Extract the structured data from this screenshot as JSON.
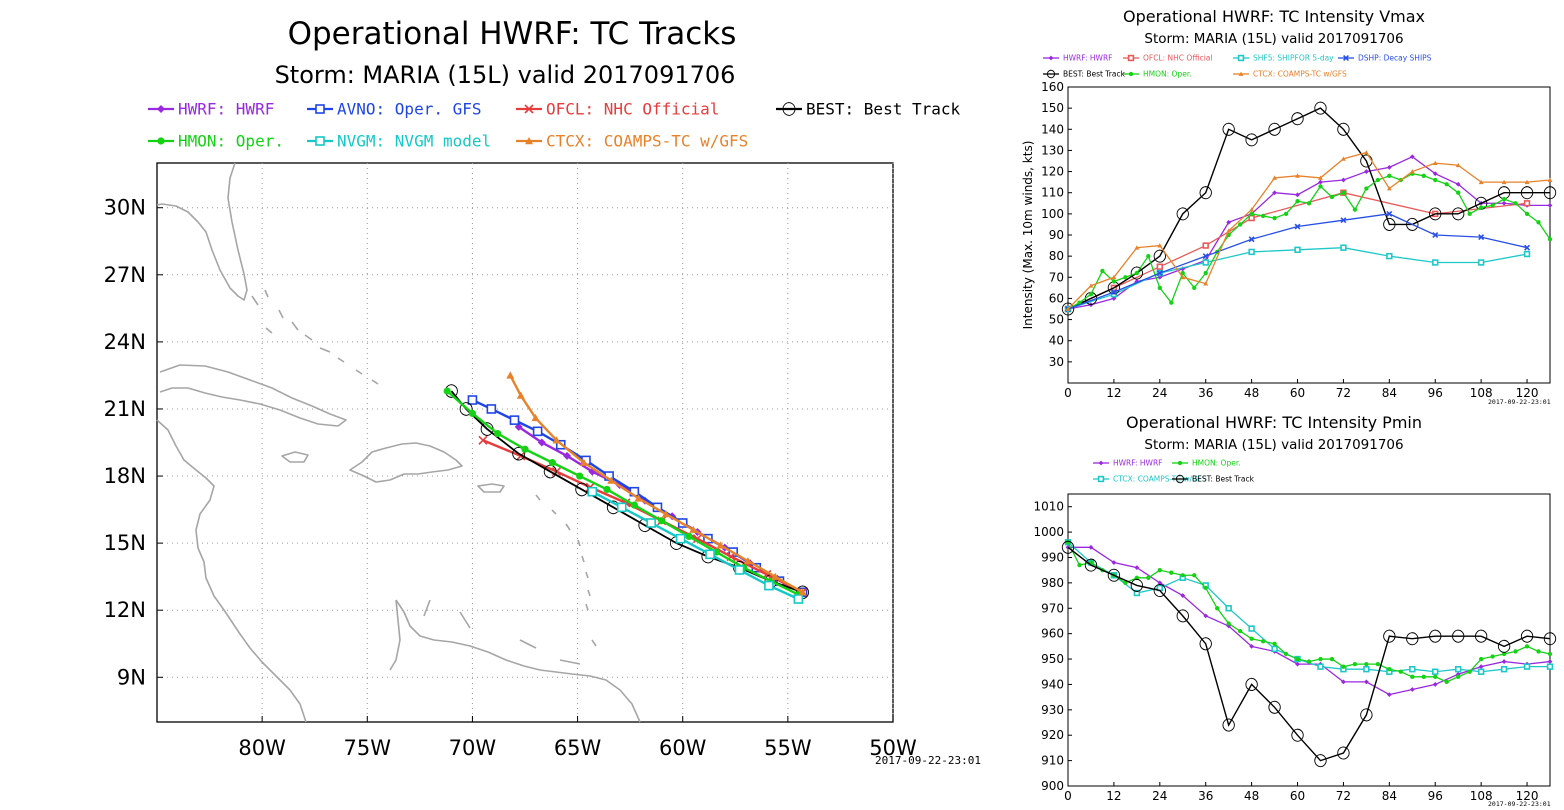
{
  "chart_data": [
    {
      "type": "scatter",
      "title": "Operational HWRF: TC Tracks",
      "subtitle": "Storm: MARIA (15L) valid 2017091706",
      "timestamp": "2017-09-22-23:01",
      "xlim": [
        -85,
        -50
      ],
      "ylim": [
        7,
        32
      ],
      "x_ticks": [
        {
          "v": -80,
          "label": "80W"
        },
        {
          "v": -75,
          "label": "75W"
        },
        {
          "v": -70,
          "label": "70W"
        },
        {
          "v": -65,
          "label": "65W"
        },
        {
          "v": -60,
          "label": "60W"
        },
        {
          "v": -55,
          "label": "55W"
        },
        {
          "v": -50,
          "label": "50W"
        }
      ],
      "y_ticks": [
        {
          "v": 9,
          "label": "9N"
        },
        {
          "v": 12,
          "label": "12N"
        },
        {
          "v": 15,
          "label": "15N"
        },
        {
          "v": 18,
          "label": "18N"
        },
        {
          "v": 21,
          "label": "21N"
        },
        {
          "v": 24,
          "label": "24N"
        },
        {
          "v": 27,
          "label": "27N"
        },
        {
          "v": 30,
          "label": "30N"
        }
      ],
      "grid": true,
      "legend": "top",
      "series": [
        {
          "name": "HWRF: HWRF",
          "color": "#9a28e0",
          "marker": "diamond",
          "x": [
            -54.3,
            -55.5,
            -56.8,
            -58.0,
            -59.3,
            -60.5,
            -61.8,
            -63.0,
            -64.3,
            -65.5,
            -66.7,
            -67.8
          ],
          "y": [
            12.8,
            13.4,
            14.1,
            14.8,
            15.5,
            16.2,
            16.9,
            17.6,
            18.2,
            18.9,
            19.5,
            20.2
          ]
        },
        {
          "name": "AVNO: Oper. GFS",
          "color": "#1e46e6",
          "marker": "square",
          "x": [
            -54.3,
            -55.4,
            -56.5,
            -57.6,
            -58.8,
            -60.0,
            -61.2,
            -62.3,
            -63.5,
            -64.6,
            -65.8,
            -66.9,
            -68.0,
            -69.1,
            -70.0
          ],
          "y": [
            12.8,
            13.3,
            13.9,
            14.6,
            15.2,
            15.9,
            16.6,
            17.3,
            18.0,
            18.7,
            19.4,
            20.0,
            20.5,
            21.0,
            21.4
          ]
        },
        {
          "name": "OFCL: NHC Official",
          "color": "#e83c3c",
          "marker": "x",
          "x": [
            -54.3,
            -56.0,
            -57.7,
            -59.3,
            -61.0,
            -62.7,
            -64.4,
            -66.0,
            -67.7,
            -69.5
          ],
          "y": [
            12.8,
            13.6,
            14.4,
            15.2,
            16.0,
            16.8,
            17.5,
            18.2,
            18.9,
            19.6
          ]
        },
        {
          "name": "BEST: Best Track",
          "color": "#000000",
          "marker": "storm",
          "x": [
            -54.3,
            -55.8,
            -57.3,
            -58.8,
            -60.3,
            -61.8,
            -63.3,
            -64.8,
            -66.3,
            -67.8,
            -69.3,
            -70.3,
            -71.0
          ],
          "y": [
            12.8,
            13.3,
            13.9,
            14.4,
            15.0,
            15.8,
            16.6,
            17.4,
            18.2,
            19.0,
            20.1,
            21.0,
            21.8
          ]
        },
        {
          "name": "HMON: Oper.",
          "color": "#14d214",
          "marker": "circle",
          "x": [
            -54.5,
            -55.8,
            -57.1,
            -58.4,
            -59.7,
            -61.0,
            -62.3,
            -63.6,
            -64.9,
            -66.2,
            -67.5,
            -68.8,
            -70.0,
            -71.2
          ],
          "y": [
            12.7,
            13.3,
            13.9,
            14.6,
            15.3,
            16.0,
            16.7,
            17.4,
            18.0,
            18.6,
            19.2,
            19.9,
            20.8,
            21.8
          ]
        },
        {
          "name": "NVGM: NVGM model",
          "color": "#14c8c8",
          "marker": "square",
          "x": [
            -54.5,
            -55.9,
            -57.3,
            -58.7,
            -60.1,
            -61.5,
            -62.9,
            -64.3
          ],
          "y": [
            12.5,
            13.1,
            13.8,
            14.5,
            15.2,
            15.9,
            16.6,
            17.3
          ]
        },
        {
          "name": "CTCX: COAMPS-TC w/GFS",
          "color": "#e8822a",
          "marker": "triangle",
          "x": [
            -54.3,
            -55.6,
            -56.9,
            -58.2,
            -59.5,
            -60.8,
            -62.1,
            -63.4,
            -64.7,
            -66.0,
            -67.0,
            -67.7,
            -68.2
          ],
          "y": [
            12.8,
            13.5,
            14.2,
            14.9,
            15.6,
            16.3,
            17.0,
            17.8,
            18.6,
            19.6,
            20.6,
            21.6,
            22.5
          ]
        }
      ]
    },
    {
      "type": "line",
      "title": "Operational HWRF: TC Intensity Vmax",
      "subtitle": "Storm: MARIA (15L) valid 2017091706",
      "ylabel": "Intensity (Max. 10m winds, kts)",
      "timestamp": "2017-09-22-23:01",
      "xlim": [
        0,
        126
      ],
      "ylim": [
        20,
        160
      ],
      "x_ticks": [
        0,
        12,
        24,
        36,
        48,
        60,
        72,
        84,
        96,
        108,
        120
      ],
      "y_ticks": [
        30,
        40,
        50,
        60,
        70,
        80,
        90,
        100,
        110,
        120,
        130,
        140,
        150,
        160
      ],
      "legend": "top",
      "series": [
        {
          "name": "HWRF: HWRF",
          "color": "#9a28e0",
          "marker": "diamond",
          "x": [
            0,
            6,
            12,
            18,
            24,
            30,
            36,
            42,
            48,
            54,
            60,
            66,
            72,
            78,
            84,
            90,
            96,
            102,
            108,
            114,
            120,
            126
          ],
          "y": [
            55,
            57,
            60,
            68,
            70,
            74,
            78,
            96,
            100,
            110,
            109,
            115,
            116,
            120,
            122,
            127,
            119,
            114,
            105,
            105,
            104,
            104
          ]
        },
        {
          "name": "OFCL: NHC Official",
          "color": "#e85a5a",
          "marker": "square",
          "x": [
            0,
            12,
            24,
            36,
            48,
            72,
            96,
            120
          ],
          "y": [
            55,
            65,
            75,
            85,
            98,
            110,
            100,
            105
          ]
        },
        {
          "name": "SHF5: SHIPFOR 5-day",
          "color": "#1ec8c8",
          "marker": "square",
          "x": [
            0,
            12,
            24,
            36,
            48,
            60,
            72,
            84,
            96,
            108,
            120
          ],
          "y": [
            55,
            62,
            72,
            77,
            82,
            83,
            84,
            80,
            77,
            77,
            81
          ]
        },
        {
          "name": "BEST: Best Track",
          "color": "#000000",
          "marker": "storm",
          "x": [
            0,
            6,
            12,
            18,
            24,
            30,
            36,
            42,
            48,
            54,
            60,
            66,
            72,
            78,
            84,
            90,
            96,
            102,
            108,
            114,
            120,
            126
          ],
          "y": [
            55,
            60,
            65,
            72,
            80,
            100,
            110,
            140,
            135,
            140,
            145,
            150,
            140,
            125,
            95,
            95,
            100,
            100,
            105,
            110,
            110,
            110
          ]
        },
        {
          "name": "HMON: Oper.",
          "color": "#14d214",
          "marker": "circle",
          "x": [
            0,
            3,
            6,
            9,
            12,
            15,
            18,
            21,
            24,
            27,
            30,
            33,
            36,
            39,
            42,
            45,
            48,
            51,
            54,
            57,
            60,
            63,
            66,
            69,
            72,
            75,
            78,
            81,
            84,
            87,
            90,
            93,
            96,
            99,
            102,
            105,
            108,
            111,
            114,
            117,
            120,
            123,
            126
          ],
          "y": [
            55,
            58,
            62,
            73,
            68,
            70,
            72,
            80,
            65,
            58,
            72,
            65,
            72,
            82,
            90,
            95,
            100,
            99,
            98,
            100,
            106,
            105,
            113,
            108,
            110,
            102,
            112,
            116,
            118,
            116,
            119,
            118,
            116,
            114,
            110,
            100,
            103,
            104,
            107,
            105,
            100,
            96,
            88
          ]
        },
        {
          "name": "DSHP: Decay SHIPS",
          "color": "#2850e6",
          "marker": "x",
          "x": [
            0,
            12,
            24,
            36,
            48,
            60,
            72,
            84,
            96,
            108,
            120
          ],
          "y": [
            55,
            63,
            72,
            80,
            88,
            94,
            97,
            100,
            90,
            89,
            84
          ]
        },
        {
          "name": "CTCX: COAMPS-TC w/GFS",
          "color": "#e8822a",
          "marker": "triangle",
          "x": [
            0,
            6,
            12,
            18,
            24,
            30,
            36,
            42,
            48,
            54,
            60,
            66,
            72,
            78,
            84,
            90,
            96,
            102,
            108,
            114,
            120,
            126
          ],
          "y": [
            55,
            66,
            70,
            84,
            85,
            70,
            67,
            92,
            102,
            117,
            118,
            117,
            126,
            129,
            112,
            120,
            124,
            123,
            115,
            115,
            115,
            116
          ]
        }
      ]
    },
    {
      "type": "line",
      "title": "Operational HWRF: TC Intensity Pmin",
      "subtitle": "Storm: MARIA (15L) valid 2017091706",
      "timestamp": "2017-09-22-23:01",
      "xlim": [
        0,
        126
      ],
      "ylim": [
        900,
        1015
      ],
      "x_ticks": [
        0,
        12,
        24,
        36,
        48,
        60,
        72,
        84,
        96,
        108,
        120
      ],
      "y_ticks": [
        900,
        910,
        920,
        930,
        940,
        950,
        960,
        970,
        980,
        990,
        1000,
        1010
      ],
      "legend": "top",
      "series": [
        {
          "name": "HWRF: HWRF",
          "color": "#9a28e0",
          "marker": "diamond",
          "x": [
            0,
            6,
            12,
            18,
            24,
            30,
            36,
            42,
            48,
            54,
            60,
            66,
            72,
            78,
            84,
            90,
            96,
            102,
            108,
            114,
            120,
            126
          ],
          "y": [
            994,
            994,
            988,
            986,
            980,
            975,
            967,
            963,
            955,
            953,
            948,
            948,
            941,
            941,
            936,
            938,
            940,
            944,
            947,
            949,
            948,
            949
          ]
        },
        {
          "name": "CTCX: COAMPS-TC w/GFS",
          "color": "#1ec8c8",
          "marker": "square",
          "x": [
            0,
            6,
            12,
            18,
            24,
            30,
            36,
            42,
            48,
            54,
            60,
            66,
            72,
            78,
            84,
            90,
            96,
            102,
            108,
            114,
            120,
            126
          ],
          "y": [
            996,
            988,
            983,
            976,
            978,
            982,
            979,
            970,
            962,
            954,
            950,
            947,
            946,
            946,
            945,
            946,
            945,
            946,
            945,
            946,
            947,
            947
          ]
        },
        {
          "name": "HMON: Oper.",
          "color": "#14d214",
          "marker": "circle",
          "x": [
            0,
            3,
            6,
            9,
            12,
            15,
            18,
            21,
            24,
            27,
            30,
            33,
            36,
            39,
            42,
            45,
            48,
            51,
            54,
            57,
            60,
            63,
            66,
            69,
            72,
            75,
            78,
            81,
            84,
            87,
            90,
            93,
            96,
            99,
            102,
            105,
            108,
            111,
            114,
            117,
            120,
            123,
            126
          ],
          "y": [
            996,
            987,
            988,
            985,
            983,
            980,
            982,
            982,
            985,
            984,
            983,
            983,
            978,
            970,
            964,
            961,
            958,
            957,
            956,
            952,
            950,
            949,
            950,
            950,
            947,
            948,
            948,
            948,
            946,
            945,
            943,
            943,
            943,
            941,
            943,
            945,
            950,
            951,
            952,
            953,
            955,
            953,
            952
          ]
        },
        {
          "name": "BEST: Best Track",
          "color": "#000000",
          "marker": "storm",
          "x": [
            0,
            6,
            12,
            18,
            24,
            30,
            36,
            42,
            48,
            54,
            60,
            66,
            72,
            78,
            84,
            90,
            96,
            102,
            108,
            114,
            120,
            126
          ],
          "y": [
            994,
            987,
            983,
            979,
            977,
            967,
            956,
            924,
            940,
            931,
            920,
            910,
            913,
            928,
            959,
            958,
            959,
            959,
            959,
            955,
            959,
            958
          ]
        }
      ]
    }
  ]
}
